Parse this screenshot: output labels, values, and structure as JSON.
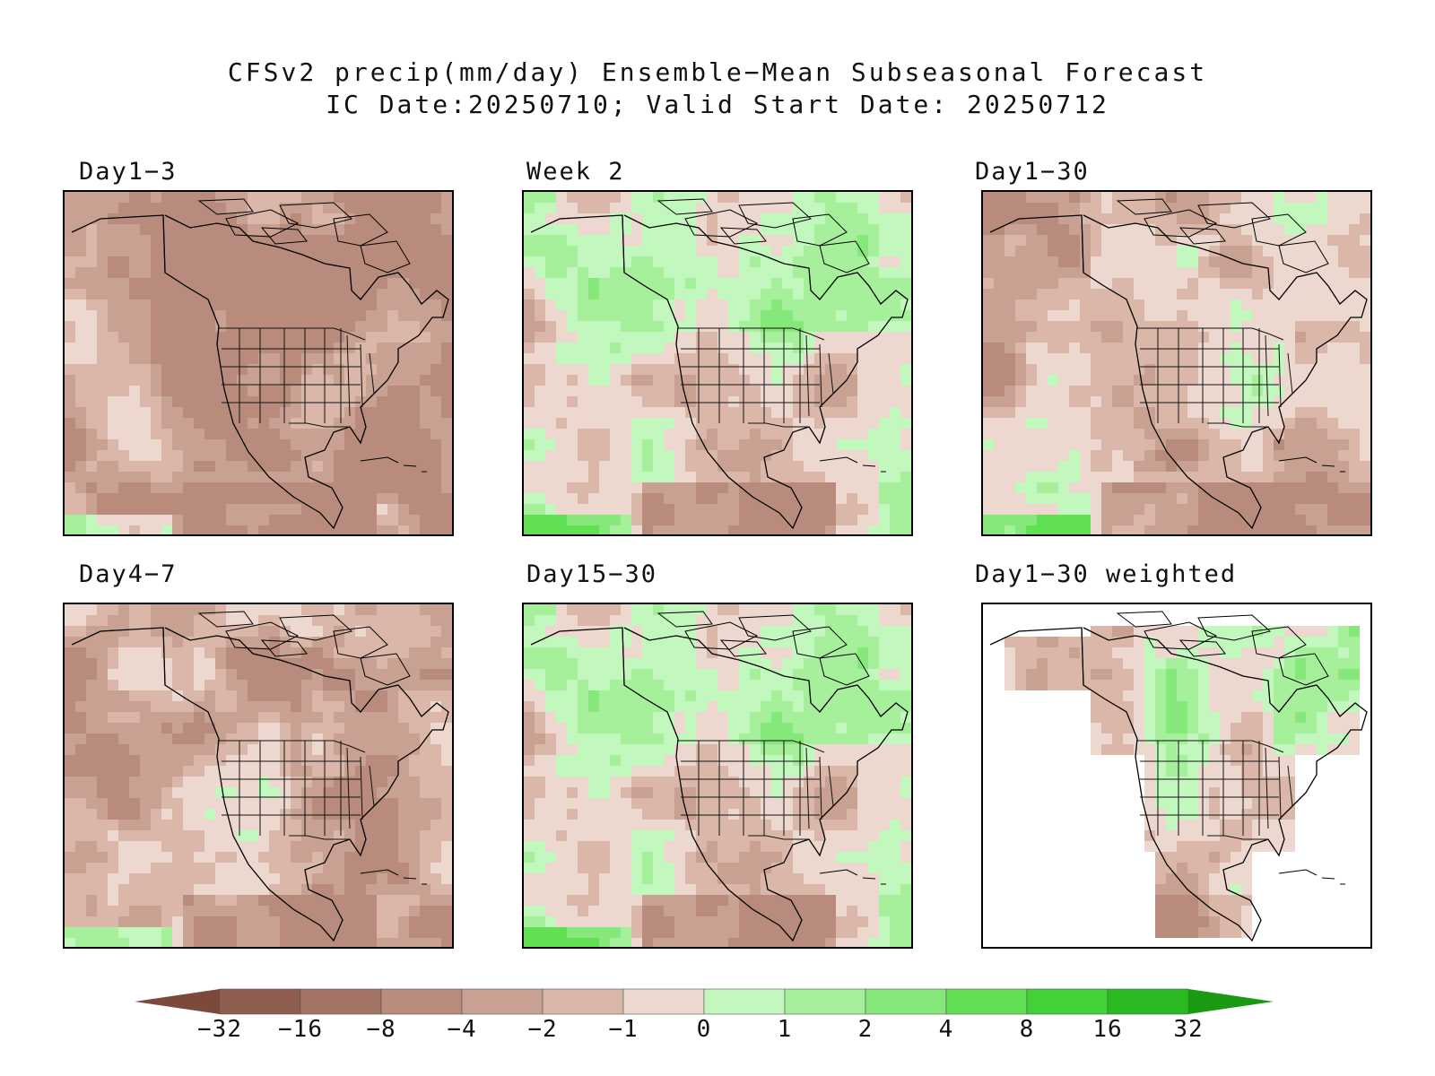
{
  "header": {
    "title_line1": "CFSv2 precip(mm/day) Ensemble−Mean Subseasonal Forecast",
    "title_line2": "IC Date:20250710; Valid Start Date: 20250712"
  },
  "panels": [
    {
      "id": "day1-3",
      "label": "Day1−3",
      "style": "dry-north"
    },
    {
      "id": "week2",
      "label": "Week 2",
      "style": "wet-canada"
    },
    {
      "id": "day1-30",
      "label": "Day1−30",
      "style": "mixed"
    },
    {
      "id": "day4-7",
      "label": "Day4−7",
      "style": "wet-edges"
    },
    {
      "id": "day15-30",
      "label": "Day15−30",
      "style": "wet-canada"
    },
    {
      "id": "day1-30-weighted",
      "label": "Day1−30 weighted",
      "style": "weighted"
    }
  ],
  "colorbar": {
    "unit": "mm/day",
    "labels": [
      "−32",
      "−16",
      "−8",
      "−4",
      "−2",
      "−1",
      "0",
      "1",
      "2",
      "4",
      "8",
      "16",
      "32"
    ],
    "colors": [
      "#7b4a3d",
      "#8f5e50",
      "#a37465",
      "#b88b7c",
      "#c9a193",
      "#dbb7aa",
      "#ecd8cf",
      "#c2f7bd",
      "#a6f09c",
      "#86e87a",
      "#62e054",
      "#41d236",
      "#2cba22",
      "#1a9a12"
    ]
  }
}
